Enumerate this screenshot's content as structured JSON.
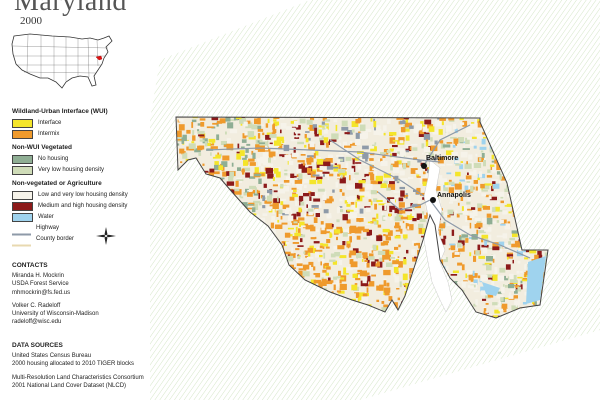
{
  "title": "Maryland",
  "year": "2000",
  "legend": {
    "wui_heading": "Wildland-Urban Interface (WUI)",
    "interface": "Interface",
    "intermix": "Intermix",
    "nonwui_heading": "Non-WUI Vegetated",
    "no_housing": "No housing",
    "very_low": "Very low housing density",
    "nonveg_heading": "Non-vegetated or Agriculture",
    "low_very_low": "Low and very low housing density",
    "medium_high": "Medium and high housing density",
    "water": "Water",
    "highway": "Highway",
    "county_border": "County border"
  },
  "colors": {
    "interface": "#f4e52a",
    "intermix": "#ef9a2c",
    "no_housing": "#8fae94",
    "very_low": "#cfdcb8",
    "low_very_low": "#f6f3ea",
    "medium_high": "#8c1a1a",
    "water": "#9fd3ee",
    "highway": "#8e9aa8",
    "county_border": "#e8d9b0"
  },
  "contacts": {
    "heading": "CONTACTS",
    "person1": [
      "Miranda H. Mockrin",
      "USDA Forest Service",
      "mhmockrin@fs.fed.us"
    ],
    "person2": [
      "Volker C. Radeloff",
      "University of Wisconsin-Madison",
      "radeloff@wisc.edu"
    ]
  },
  "sources": {
    "heading": "DATA SOURCES",
    "source1": [
      "United States Census Bureau",
      "2000 housing allocated to 2010 TIGER blocks"
    ],
    "source2": [
      "Multi-Resolution Land Characteristics Consortium",
      "2001 National Land Cover Dataset (NLCD)"
    ]
  },
  "cities": {
    "baltimore": "Baltimore",
    "annapolis": "Annapolis"
  },
  "icons": {
    "compass": "compass-rose-icon",
    "inset": "us-locator-map-icon"
  }
}
